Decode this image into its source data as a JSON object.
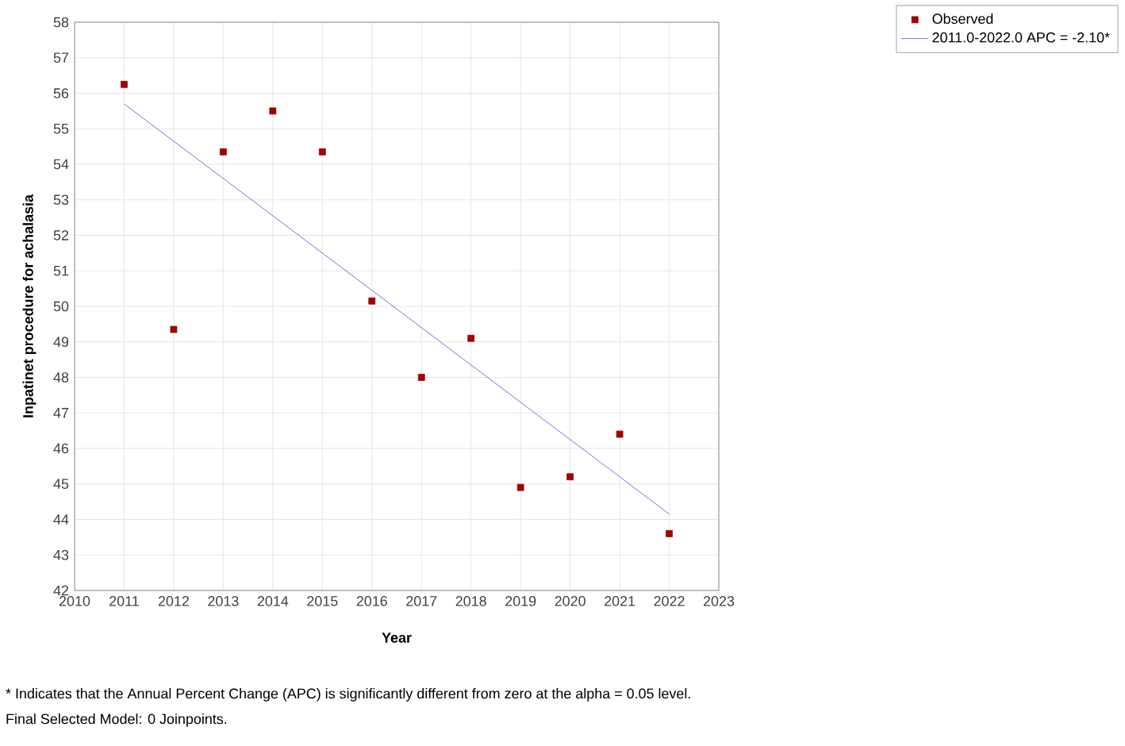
{
  "chart_data": {
    "type": "scatter",
    "xlabel": "Year",
    "ylabel": "Inpatinet procedure for achalasia",
    "xlim": [
      2010,
      2023
    ],
    "xticks": [
      2010,
      2011,
      2012,
      2013,
      2014,
      2015,
      2016,
      2017,
      2018,
      2019,
      2020,
      2021,
      2022,
      2023
    ],
    "ylim": [
      42,
      58
    ],
    "yticks": [
      42,
      43,
      44,
      45,
      46,
      47,
      48,
      49,
      50,
      51,
      52,
      53,
      54,
      55,
      56,
      57,
      58
    ],
    "grid": true,
    "legend": "top right",
    "series": [
      {
        "name": "Observed",
        "marker": "square",
        "color": "#a00000",
        "x": [
          2011,
          2012,
          2013,
          2014,
          2015,
          2016,
          2017,
          2018,
          2019,
          2020,
          2021,
          2022
        ],
        "values": [
          56.25,
          49.35,
          54.35,
          55.5,
          54.35,
          50.15,
          48.0,
          49.1,
          44.9,
          45.2,
          46.4,
          43.6
        ]
      },
      {
        "name": "2011.0-2022.0 APC  = -2.10*",
        "type": "line",
        "marker": "none",
        "line_style": "solid",
        "color": "#5050d0",
        "x": [
          2011,
          2022
        ],
        "values": [
          55.7,
          44.15
        ]
      }
    ],
    "annotations": [
      "* Indicates that the Annual Percent Change (APC) is significantly different from zero at the alpha = 0.05 level.",
      "Final Selected Model: 0 Joinpoints."
    ]
  }
}
